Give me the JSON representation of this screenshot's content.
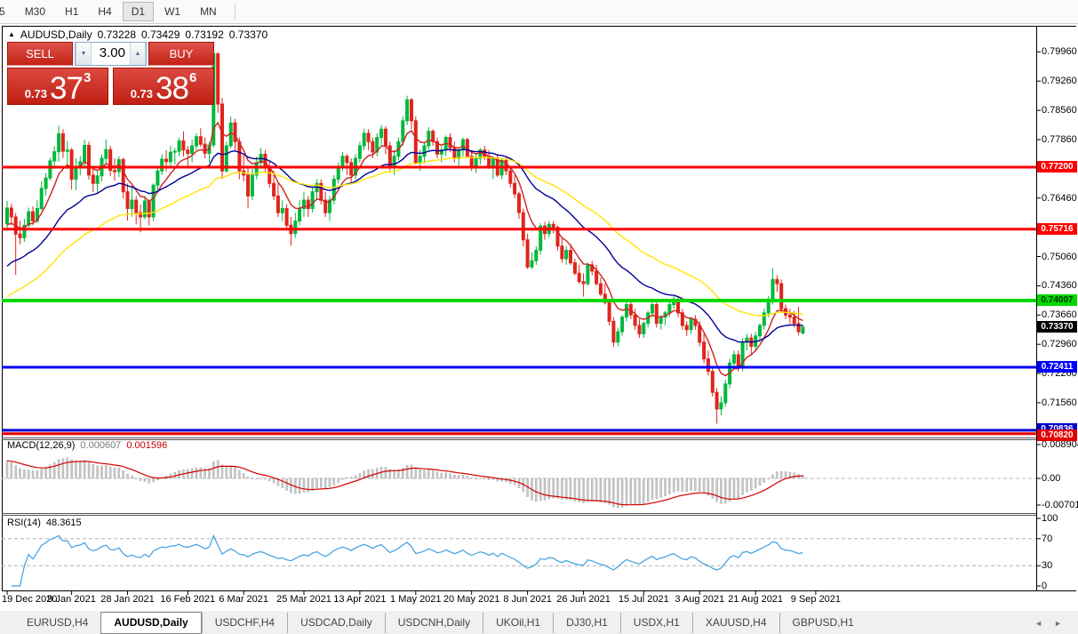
{
  "toolbar": {
    "timeframes": [
      "5",
      "M30",
      "H1",
      "H4",
      "D1",
      "W1",
      "MN"
    ],
    "selected": "D1"
  },
  "chart_header": {
    "collapse_icon": "▲",
    "symbol": "AUDUSD,Daily",
    "open": "0.73228",
    "high": "0.73429",
    "low": "0.73192",
    "close": "0.73370"
  },
  "trade_panel": {
    "sell_label": "SELL",
    "buy_label": "BUY",
    "volume": "3.00",
    "volume_down_icon": "▼",
    "volume_up_icon": "▲",
    "sell_price": {
      "prefix": "0.73",
      "big": "37",
      "sup": "3"
    },
    "buy_price": {
      "prefix": "0.73",
      "big": "38",
      "sup": "6"
    }
  },
  "macd_panel": {
    "name": "MACD(12,26,9)",
    "value_main": "0.000607",
    "value_signal": "0.001596",
    "axis_ticks": [
      {
        "label": "0.008904",
        "value": 0.008904
      },
      {
        "label": "0.00",
        "value": 0
      },
      {
        "label": "-0.007013",
        "value": -0.007013
      }
    ]
  },
  "rsi_panel": {
    "name": "RSI(14)",
    "value": "48.3615",
    "dashed_levels": [
      70,
      30
    ],
    "axis_ticks": [
      {
        "label": "100",
        "value": 100
      },
      {
        "label": "70",
        "value": 70
      },
      {
        "label": "30",
        "value": 30
      },
      {
        "label": "0",
        "value": 0
      }
    ]
  },
  "bottom_tabs": {
    "tabs": [
      "EURUSD,H4",
      "AUDUSD,Daily",
      "USDCHF,H4",
      "USDCAD,Daily",
      "USDCNH,Daily",
      "UKOil,H1",
      "DJ30,H1",
      "USDX,H1",
      "XAUUSD,H4",
      "GBPUSD,H1"
    ],
    "selected": "AUDUSD,Daily",
    "nav_left": "◄",
    "nav_right": "►"
  },
  "chart_data": {
    "type": "candlestick",
    "symbol": "AUDUSD",
    "timeframe": "Daily",
    "ohlc_current": {
      "open": 0.73228,
      "high": 0.73429,
      "low": 0.73192,
      "close": 0.7337
    },
    "colors": {
      "up": "#00b83c",
      "down": "#e0251d",
      "ma_fast": "#d02020",
      "ma_mid": "#000096",
      "ma_slow": "#ffe400",
      "rsi": "#3b9fe0",
      "macd_signal": "#d40000",
      "macd_histogram": "#c9c9c9"
    },
    "price_ticks": [
      0.7996,
      0.7926,
      0.7856,
      0.7786,
      0.7716,
      0.7646,
      0.7576,
      0.7506,
      0.7436,
      0.7366,
      0.7296,
      0.7226,
      0.7156,
      0.7086
    ],
    "hlines": [
      {
        "price": 0.772,
        "label": "0.77200",
        "color": "#ff0000",
        "text": "#ffffff",
        "width": 3
      },
      {
        "price": 0.75716,
        "label": "0.75716",
        "color": "#ff0000",
        "text": "#ffffff",
        "width": 3
      },
      {
        "price": 0.74007,
        "label": "0.74007",
        "color": "#00d800",
        "text": "#003300",
        "width": 4
      },
      {
        "price": 0.72411,
        "label": "0.72411",
        "color": "#0000ff",
        "text": "#ffffff",
        "width": 3
      },
      {
        "price": 0.70836,
        "label": "0.70836",
        "color": "#0000cd",
        "text": "#ffffff",
        "width": 3
      },
      {
        "price": 0.7082,
        "label": "0.70820",
        "color": "#e60000",
        "text": "#ffffff",
        "width": 3
      }
    ],
    "last_price": {
      "value": 0.7337,
      "label": "0.73370",
      "bg": "#000000",
      "text": "#ffffff"
    },
    "moving_averages": [
      {
        "period": 8,
        "seed": 0.757,
        "color": "#d02020"
      },
      {
        "period": 26,
        "seed": 0.7472,
        "color": "#000096"
      },
      {
        "period": 48,
        "seed": 0.74,
        "color": "#ffe400"
      }
    ],
    "macd": {
      "fast": 12,
      "slow": 26,
      "signal": 9
    },
    "rsi": {
      "period": 14
    },
    "date_ticks": [
      {
        "label": "19 Dec 2020",
        "i": 0
      },
      {
        "label": "9 Jan 2021",
        "i": 15
      },
      {
        "label": "28 Jan 2021",
        "i": 28
      },
      {
        "label": "16 Feb 2021",
        "i": 42
      },
      {
        "label": "6 Mar 2021",
        "i": 55
      },
      {
        "label": "25 Mar 2021",
        "i": 69
      },
      {
        "label": "13 Apr 2021",
        "i": 82
      },
      {
        "label": "1 May 2021",
        "i": 95
      },
      {
        "label": "20 May 2021",
        "i": 108
      },
      {
        "label": "8 Jun 2021",
        "i": 121
      },
      {
        "label": "26 Jun 2021",
        "i": 134
      },
      {
        "label": "15 Jul 2021",
        "i": 148
      },
      {
        "label": "3 Aug 2021",
        "i": 161
      },
      {
        "label": "21 Aug 2021",
        "i": 174
      },
      {
        "label": "9 Sep 2021",
        "i": 188
      }
    ],
    "candles": [
      [
        0.7585,
        0.7639,
        0.757,
        0.7622
      ],
      [
        0.7622,
        0.7632,
        0.758,
        0.7601
      ],
      [
        0.7601,
        0.761,
        0.7462,
        0.756
      ],
      [
        0.756,
        0.7592,
        0.7535,
        0.7551
      ],
      [
        0.7551,
        0.7596,
        0.7541,
        0.7581
      ],
      [
        0.7581,
        0.7623,
        0.7576,
        0.7613
      ],
      [
        0.7613,
        0.7626,
        0.7581,
        0.7591
      ],
      [
        0.7591,
        0.7641,
        0.7586,
        0.7621
      ],
      [
        0.7621,
        0.7686,
        0.7616,
        0.7669
      ],
      [
        0.7669,
        0.7706,
        0.7651,
        0.7694
      ],
      [
        0.7694,
        0.7743,
        0.7688,
        0.7735
      ],
      [
        0.7735,
        0.777,
        0.7716,
        0.7757
      ],
      [
        0.7757,
        0.782,
        0.7733,
        0.78
      ],
      [
        0.78,
        0.7811,
        0.7742,
        0.7758
      ],
      [
        0.7758,
        0.7783,
        0.7715,
        0.7761
      ],
      [
        0.7761,
        0.7766,
        0.7666,
        0.7691
      ],
      [
        0.7691,
        0.7741,
        0.7665,
        0.7721
      ],
      [
        0.7721,
        0.7746,
        0.77,
        0.7733
      ],
      [
        0.7733,
        0.7786,
        0.772,
        0.7772
      ],
      [
        0.7772,
        0.7781,
        0.769,
        0.7701
      ],
      [
        0.7701,
        0.7716,
        0.766,
        0.7681
      ],
      [
        0.7681,
        0.7711,
        0.7655,
        0.7699
      ],
      [
        0.7699,
        0.7751,
        0.7686,
        0.7741
      ],
      [
        0.7741,
        0.7786,
        0.7726,
        0.7762
      ],
      [
        0.7762,
        0.7771,
        0.7698,
        0.7712
      ],
      [
        0.7712,
        0.7741,
        0.7688,
        0.7709
      ],
      [
        0.7709,
        0.7746,
        0.7696,
        0.7738
      ],
      [
        0.7738,
        0.7743,
        0.7645,
        0.7661
      ],
      [
        0.7661,
        0.7681,
        0.7592,
        0.7621
      ],
      [
        0.7621,
        0.7676,
        0.7601,
        0.7641
      ],
      [
        0.7641,
        0.7651,
        0.7583,
        0.7611
      ],
      [
        0.7611,
        0.7631,
        0.7564,
        0.7601
      ],
      [
        0.7601,
        0.7651,
        0.7596,
        0.7639
      ],
      [
        0.7639,
        0.7643,
        0.758,
        0.7601
      ],
      [
        0.7601,
        0.7681,
        0.7591,
        0.7677
      ],
      [
        0.7677,
        0.7721,
        0.7661,
        0.7711
      ],
      [
        0.7711,
        0.7751,
        0.7701,
        0.7739
      ],
      [
        0.7739,
        0.7761,
        0.771,
        0.7733
      ],
      [
        0.7733,
        0.7771,
        0.7721,
        0.7756
      ],
      [
        0.7756,
        0.7766,
        0.7726,
        0.7758
      ],
      [
        0.7758,
        0.7791,
        0.7746,
        0.7783
      ],
      [
        0.7783,
        0.7806,
        0.7745,
        0.7761
      ],
      [
        0.7761,
        0.7771,
        0.7721,
        0.7753
      ],
      [
        0.7753,
        0.7786,
        0.7731,
        0.7771
      ],
      [
        0.7771,
        0.7801,
        0.7761,
        0.7793
      ],
      [
        0.7793,
        0.7813,
        0.7768,
        0.7775
      ],
      [
        0.7775,
        0.7791,
        0.7741,
        0.7753
      ],
      [
        0.7753,
        0.7781,
        0.7731,
        0.7773
      ],
      [
        0.7773,
        0.8007,
        0.7767,
        0.7991
      ],
      [
        0.7991,
        0.7995,
        0.785,
        0.7871
      ],
      [
        0.7871,
        0.7886,
        0.7692,
        0.7711
      ],
      [
        0.7711,
        0.7781,
        0.7706,
        0.7771
      ],
      [
        0.7771,
        0.7841,
        0.7766,
        0.7826
      ],
      [
        0.7826,
        0.7836,
        0.7761,
        0.7781
      ],
      [
        0.7781,
        0.7791,
        0.7691,
        0.7711
      ],
      [
        0.7711,
        0.7751,
        0.7686,
        0.7701
      ],
      [
        0.7701,
        0.7721,
        0.7621,
        0.7651
      ],
      [
        0.7651,
        0.7716,
        0.7641,
        0.7701
      ],
      [
        0.7701,
        0.7746,
        0.7691,
        0.7731
      ],
      [
        0.7731,
        0.7766,
        0.7716,
        0.7751
      ],
      [
        0.7751,
        0.7761,
        0.7706,
        0.7721
      ],
      [
        0.7721,
        0.7736,
        0.7671,
        0.7681
      ],
      [
        0.7681,
        0.7711,
        0.7641,
        0.7651
      ],
      [
        0.7651,
        0.7681,
        0.7601,
        0.7611
      ],
      [
        0.7611,
        0.7641,
        0.7591,
        0.7621
      ],
      [
        0.7621,
        0.7631,
        0.7571,
        0.7581
      ],
      [
        0.7581,
        0.7601,
        0.7532,
        0.7561
      ],
      [
        0.7561,
        0.7611,
        0.7551,
        0.7591
      ],
      [
        0.7591,
        0.7641,
        0.7581,
        0.7621
      ],
      [
        0.7621,
        0.7661,
        0.7601,
        0.7641
      ],
      [
        0.7641,
        0.7651,
        0.7601,
        0.7621
      ],
      [
        0.7621,
        0.7671,
        0.7611,
        0.7661
      ],
      [
        0.7661,
        0.7691,
        0.7641,
        0.7681
      ],
      [
        0.7681,
        0.7691,
        0.7631,
        0.7641
      ],
      [
        0.7641,
        0.7661,
        0.7601,
        0.7611
      ],
      [
        0.7611,
        0.7651,
        0.7591,
        0.7641
      ],
      [
        0.7641,
        0.7701,
        0.7631,
        0.7691
      ],
      [
        0.7691,
        0.7731,
        0.7681,
        0.7721
      ],
      [
        0.7721,
        0.7756,
        0.7711,
        0.7746
      ],
      [
        0.7746,
        0.7751,
        0.7701,
        0.7731
      ],
      [
        0.7731,
        0.7741,
        0.7681,
        0.7701
      ],
      [
        0.7701,
        0.7751,
        0.7691,
        0.7741
      ],
      [
        0.7741,
        0.7781,
        0.7731,
        0.7771
      ],
      [
        0.7771,
        0.7811,
        0.7761,
        0.7801
      ],
      [
        0.7801,
        0.7811,
        0.7761,
        0.7781
      ],
      [
        0.7781,
        0.7791,
        0.7741,
        0.7756
      ],
      [
        0.7756,
        0.7801,
        0.7746,
        0.7791
      ],
      [
        0.7791,
        0.7821,
        0.7771,
        0.7811
      ],
      [
        0.7811,
        0.7818,
        0.7751,
        0.7771
      ],
      [
        0.7771,
        0.7781,
        0.7711,
        0.7721
      ],
      [
        0.7721,
        0.7761,
        0.7701,
        0.7746
      ],
      [
        0.7746,
        0.7791,
        0.7736,
        0.7781
      ],
      [
        0.7781,
        0.7841,
        0.7771,
        0.7831
      ],
      [
        0.7831,
        0.7891,
        0.7821,
        0.7881
      ],
      [
        0.7881,
        0.7886,
        0.7811,
        0.7831
      ],
      [
        0.7831,
        0.7841,
        0.7726,
        0.7731
      ],
      [
        0.7731,
        0.7761,
        0.7711,
        0.7746
      ],
      [
        0.7746,
        0.7781,
        0.7731,
        0.7771
      ],
      [
        0.7771,
        0.7816,
        0.7761,
        0.7806
      ],
      [
        0.7806,
        0.7811,
        0.7771,
        0.7781
      ],
      [
        0.7781,
        0.7791,
        0.7741,
        0.7751
      ],
      [
        0.7751,
        0.7771,
        0.7731,
        0.7761
      ],
      [
        0.7761,
        0.7796,
        0.7746,
        0.7791
      ],
      [
        0.7791,
        0.7801,
        0.7756,
        0.7766
      ],
      [
        0.7766,
        0.7781,
        0.7731,
        0.7741
      ],
      [
        0.7741,
        0.7766,
        0.7721,
        0.7761
      ],
      [
        0.7761,
        0.7791,
        0.7746,
        0.7786
      ],
      [
        0.7786,
        0.7791,
        0.7741,
        0.7746
      ],
      [
        0.7746,
        0.7761,
        0.7711,
        0.7721
      ],
      [
        0.7721,
        0.7751,
        0.7706,
        0.7741
      ],
      [
        0.7741,
        0.7766,
        0.7726,
        0.7761
      ],
      [
        0.7761,
        0.7771,
        0.7736,
        0.7746
      ],
      [
        0.7746,
        0.7761,
        0.7716,
        0.7721
      ],
      [
        0.7721,
        0.7746,
        0.7691,
        0.7741
      ],
      [
        0.7741,
        0.7751,
        0.7696,
        0.7701
      ],
      [
        0.7701,
        0.7741,
        0.7691,
        0.7736
      ],
      [
        0.7736,
        0.7746,
        0.7701,
        0.7711
      ],
      [
        0.7711,
        0.7721,
        0.7671,
        0.7681
      ],
      [
        0.7681,
        0.7701,
        0.7646,
        0.7656
      ],
      [
        0.7656,
        0.7661,
        0.7596,
        0.7611
      ],
      [
        0.7611,
        0.7621,
        0.7531,
        0.7546
      ],
      [
        0.7546,
        0.7561,
        0.7476,
        0.7481
      ],
      [
        0.7481,
        0.7516,
        0.7476,
        0.7496
      ],
      [
        0.7496,
        0.7531,
        0.7486,
        0.7521
      ],
      [
        0.7521,
        0.7586,
        0.7511,
        0.7579
      ],
      [
        0.7579,
        0.7589,
        0.7546,
        0.7561
      ],
      [
        0.7561,
        0.7591,
        0.7551,
        0.7583
      ],
      [
        0.7583,
        0.7591,
        0.7561,
        0.7576
      ],
      [
        0.7576,
        0.7581,
        0.7521,
        0.7531
      ],
      [
        0.7531,
        0.7551,
        0.7491,
        0.7501
      ],
      [
        0.7501,
        0.7531,
        0.7486,
        0.7521
      ],
      [
        0.7521,
        0.7536,
        0.7486,
        0.7491
      ],
      [
        0.7491,
        0.7501,
        0.7461,
        0.7466
      ],
      [
        0.7466,
        0.7486,
        0.7441,
        0.7446
      ],
      [
        0.7446,
        0.7466,
        0.741,
        0.7441
      ],
      [
        0.7441,
        0.7491,
        0.7436,
        0.7486
      ],
      [
        0.7486,
        0.7496,
        0.7461,
        0.7471
      ],
      [
        0.7471,
        0.7486,
        0.7436,
        0.7441
      ],
      [
        0.7441,
        0.7456,
        0.7411,
        0.7416
      ],
      [
        0.7416,
        0.7441,
        0.7391,
        0.7396
      ],
      [
        0.7396,
        0.7401,
        0.7341,
        0.7351
      ],
      [
        0.7351,
        0.7361,
        0.729,
        0.7301
      ],
      [
        0.7301,
        0.7336,
        0.7291,
        0.7326
      ],
      [
        0.7326,
        0.7366,
        0.7316,
        0.7361
      ],
      [
        0.7361,
        0.7396,
        0.7351,
        0.7391
      ],
      [
        0.7391,
        0.7401,
        0.7356,
        0.7366
      ],
      [
        0.7366,
        0.7381,
        0.7331,
        0.7341
      ],
      [
        0.7341,
        0.7356,
        0.7311,
        0.7321
      ],
      [
        0.7321,
        0.7351,
        0.7311,
        0.7346
      ],
      [
        0.7346,
        0.7376,
        0.7336,
        0.7371
      ],
      [
        0.7371,
        0.7396,
        0.7361,
        0.7391
      ],
      [
        0.7391,
        0.7396,
        0.7336,
        0.7346
      ],
      [
        0.7346,
        0.7366,
        0.7331,
        0.7361
      ],
      [
        0.7361,
        0.7376,
        0.7341,
        0.7371
      ],
      [
        0.7371,
        0.7401,
        0.7361,
        0.7391
      ],
      [
        0.7391,
        0.7411,
        0.7381,
        0.7401
      ],
      [
        0.7401,
        0.7411,
        0.7361,
        0.7371
      ],
      [
        0.7371,
        0.7381,
        0.7331,
        0.7341
      ],
      [
        0.7341,
        0.7351,
        0.7316,
        0.7331
      ],
      [
        0.7331,
        0.7361,
        0.7321,
        0.7356
      ],
      [
        0.7356,
        0.7366,
        0.7331,
        0.7341
      ],
      [
        0.7341,
        0.7351,
        0.7291,
        0.7301
      ],
      [
        0.7301,
        0.7321,
        0.7251,
        0.7261
      ],
      [
        0.7261,
        0.7281,
        0.7221,
        0.7231
      ],
      [
        0.7231,
        0.7241,
        0.7171,
        0.7181
      ],
      [
        0.7181,
        0.7191,
        0.7106,
        0.7141
      ],
      [
        0.7141,
        0.7171,
        0.7126,
        0.7156
      ],
      [
        0.7156,
        0.7211,
        0.7146,
        0.7201
      ],
      [
        0.7201,
        0.7261,
        0.7191,
        0.7251
      ],
      [
        0.7251,
        0.7281,
        0.7236,
        0.7271
      ],
      [
        0.7271,
        0.7281,
        0.7231,
        0.7241
      ],
      [
        0.7241,
        0.7311,
        0.7231,
        0.7301
      ],
      [
        0.7301,
        0.7321,
        0.7281,
        0.7311
      ],
      [
        0.7311,
        0.7321,
        0.7271,
        0.7291
      ],
      [
        0.7291,
        0.7326,
        0.7281,
        0.7316
      ],
      [
        0.7316,
        0.7346,
        0.7301,
        0.7341
      ],
      [
        0.7341,
        0.7381,
        0.7331,
        0.7371
      ],
      [
        0.7371,
        0.7411,
        0.7361,
        0.7401
      ],
      [
        0.7401,
        0.7478,
        0.7391,
        0.7451
      ],
      [
        0.7451,
        0.7461,
        0.7421,
        0.7441
      ],
      [
        0.7441,
        0.7451,
        0.7371,
        0.7381
      ],
      [
        0.7381,
        0.7391,
        0.7356,
        0.7366
      ],
      [
        0.7366,
        0.7381,
        0.7346,
        0.7361
      ],
      [
        0.7361,
        0.7376,
        0.7336,
        0.7346
      ],
      [
        0.7346,
        0.7386,
        0.7318,
        0.7326
      ],
      [
        0.73228,
        0.73429,
        0.73192,
        0.7337
      ]
    ]
  }
}
